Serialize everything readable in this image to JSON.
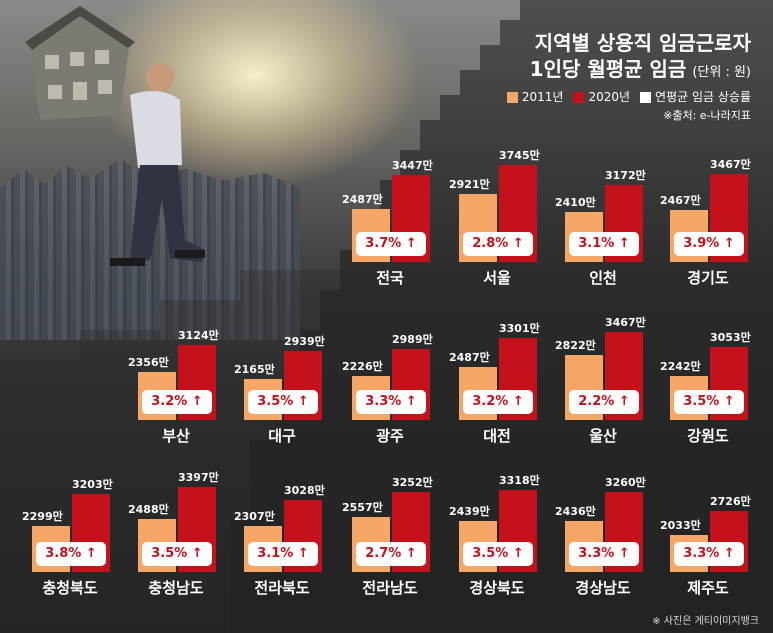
{
  "header": {
    "title_line1": "지역별 상용직 임금근로자",
    "title_line2": "1인당 월평균 임금",
    "unit": "(단위 : 원)"
  },
  "legend": {
    "label_2011": "2011년",
    "label_2020": "2020년",
    "label_rate": "연평균 임금 상승률",
    "color_2011": "#f6a766",
    "color_2020": "#c4111c",
    "color_rate": "#ffffff"
  },
  "source": "※출처: e-나라지표",
  "photo_credit": "※ 사진은 게티이미지뱅크",
  "chart_data": {
    "type": "bar",
    "unit_suffix": "만",
    "series_names": [
      "2011년",
      "2020년"
    ],
    "regions": [
      {
        "name": "전국",
        "v2011": 2487,
        "v2020": 3447,
        "l2011": "2487만",
        "l2020": "3447만",
        "rate": "3.7%"
      },
      {
        "name": "서울",
        "v2011": 2921,
        "v2020": 3745,
        "l2011": "2921만",
        "l2020": "3745만",
        "rate": "2.8%"
      },
      {
        "name": "인천",
        "v2011": 2410,
        "v2020": 3172,
        "l2011": "2410만",
        "l2020": "3172만",
        "rate": "3.1%"
      },
      {
        "name": "경기도",
        "v2011": 2467,
        "v2020": 3467,
        "l2011": "2467만",
        "l2020": "3467만",
        "rate": "3.9%"
      },
      {
        "name": "부산",
        "v2011": 2356,
        "v2020": 3124,
        "l2011": "2356만",
        "l2020": "3124만",
        "rate": "3.2%"
      },
      {
        "name": "대구",
        "v2011": 2165,
        "v2020": 2939,
        "l2011": "2165만",
        "l2020": "2939만",
        "rate": "3.5%"
      },
      {
        "name": "광주",
        "v2011": 2226,
        "v2020": 2989,
        "l2011": "2226만",
        "l2020": "2989만",
        "rate": "3.3%"
      },
      {
        "name": "대전",
        "v2011": 2487,
        "v2020": 3301,
        "l2011": "2487만",
        "l2020": "3301만",
        "rate": "3.2%"
      },
      {
        "name": "울산",
        "v2011": 2822,
        "v2020": 3467,
        "l2011": "2822만",
        "l2020": "3467만",
        "rate": "2.2%"
      },
      {
        "name": "강원도",
        "v2011": 2242,
        "v2020": 3053,
        "l2011": "2242만",
        "l2020": "3053만",
        "rate": "3.5%"
      },
      {
        "name": "충청북도",
        "v2011": 2299,
        "v2020": 3203,
        "l2011": "2299만",
        "l2020": "3203만",
        "rate": "3.8%"
      },
      {
        "name": "충청남도",
        "v2011": 2488,
        "v2020": 3397,
        "l2011": "2488만",
        "l2020": "3397만",
        "rate": "3.5%"
      },
      {
        "name": "전라북도",
        "v2011": 2307,
        "v2020": 3028,
        "l2011": "2307만",
        "l2020": "3028만",
        "rate": "3.1%"
      },
      {
        "name": "전라남도",
        "v2011": 2557,
        "v2020": 3252,
        "l2011": "2557만",
        "l2020": "3252만",
        "rate": "2.7%"
      },
      {
        "name": "경상북도",
        "v2011": 2439,
        "v2020": 3318,
        "l2011": "2439만",
        "l2020": "3318만",
        "rate": "3.5%"
      },
      {
        "name": "경상남도",
        "v2011": 2436,
        "v2020": 3260,
        "l2011": "2436만",
        "l2020": "3260만",
        "rate": "3.3%"
      },
      {
        "name": "제주도",
        "v2011": 2033,
        "v2020": 2726,
        "l2011": "2033만",
        "l2020": "2726만",
        "rate": "3.3%"
      }
    ]
  }
}
